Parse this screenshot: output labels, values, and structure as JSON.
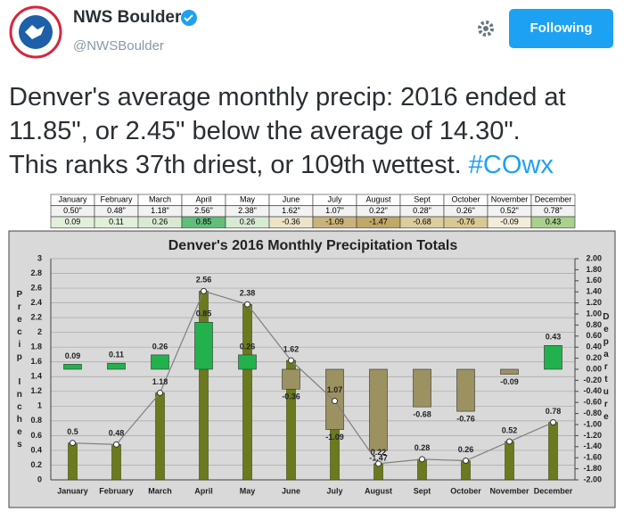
{
  "account": {
    "name": "NWS Boulder",
    "handle": "@NWSBoulder",
    "button": "Following"
  },
  "tweet": {
    "lines": [
      "Denver's average monthly precip: 2016 ended at",
      "11.85\", or 2.45\" below the average of 14.30\".",
      "This ranks 37th driest, or 109th wettest."
    ],
    "hashtag": "#COwx"
  },
  "table": {
    "header": [
      "January",
      "February",
      "March",
      "April",
      "May",
      "June",
      "July",
      "August",
      "Sept",
      "October",
      "November",
      "December"
    ],
    "rows": [
      [
        "0.50\"",
        "0.48\"",
        "1.18\"",
        "2.56\"",
        "2.38\"",
        "1.62\"",
        "1.07\"",
        "0.22\"",
        "0.28\"",
        "0.26\"",
        "0.52\"",
        "0.78\""
      ],
      [
        "0.09",
        "0.11",
        "0.26",
        "0.85",
        "0.26",
        "-0.36",
        "-1.09",
        "-1.47",
        "-0.68",
        "-0.76",
        "-0.09",
        "0.43"
      ]
    ],
    "row_colors": [
      [
        "#f2f2f2",
        "#f2f2f2",
        "#f2f2f2",
        "#f2f2f2",
        "#f2f2f2",
        "#f2f2f2",
        "#f2f2f2",
        "#f2f2f2",
        "#f2f2f2",
        "#f2f2f2",
        "#f2f2f2",
        "#f2f2f2"
      ],
      [
        "#e2efda",
        "#e2efda",
        "#d9ead3",
        "#63be7b",
        "#d9ead3",
        "#ede4c8",
        "#c9b27c",
        "#c0a76a",
        "#dccda0",
        "#d8c895",
        "#f2ecd9",
        "#a9d08e"
      ]
    ]
  },
  "chart_data": {
    "type": "bar",
    "title": "Denver's 2016 Monthly Precipitation Totals",
    "ylabel": "Precip Inches",
    "y2label": "Departure",
    "categories": [
      "January",
      "February",
      "March",
      "April",
      "May",
      "June",
      "July",
      "August",
      "Sept",
      "October",
      "November",
      "December"
    ],
    "series": [
      {
        "values": [
          0.5,
          0.48,
          1.18,
          2.56,
          2.38,
          1.62,
          1.07,
          0.22,
          0.28,
          0.26,
          0.52,
          0.78
        ],
        "color": "#6b7a1e",
        "line_color": "#7f7f7f",
        "axis": "y"
      },
      {
        "values": [
          0.09,
          0.11,
          0.26,
          0.85,
          0.26,
          -0.36,
          -1.09,
          -1.47,
          -0.68,
          -0.76,
          -0.09,
          0.43
        ],
        "color": "#22b14c",
        "negative_color": "#9c9160",
        "axis": "y2"
      }
    ],
    "ylim": [
      0,
      3
    ],
    "yticks": [
      0,
      0.2,
      0.4,
      0.6,
      0.8,
      1,
      1.2,
      1.4,
      1.6,
      1.8,
      2,
      2.2,
      2.4,
      2.6,
      2.8,
      3
    ],
    "y2lim": [
      -2,
      2
    ],
    "y2ticks": [
      {
        "value": -2,
        "label": "-2.00"
      },
      {
        "value": -1.8,
        "label": "-1.80"
      },
      {
        "value": -1.6,
        "label": "-1.60"
      },
      {
        "value": -1.4,
        "label": "-1.40"
      },
      {
        "value": -1.2,
        "label": "-1.20"
      },
      {
        "value": -1,
        "label": "-1.00"
      },
      {
        "value": -0.8,
        "label": "-0.80"
      },
      {
        "value": -0.6,
        "label": "-0.60"
      },
      {
        "value": -0.4,
        "label": "-0.40"
      },
      {
        "value": -0.2,
        "label": "-0.20"
      },
      {
        "value": 0,
        "label": "0.00"
      },
      {
        "value": 0.2,
        "label": "0.20"
      },
      {
        "value": 0.4,
        "label": "0.40"
      },
      {
        "value": 0.6,
        "label": "0.60"
      },
      {
        "value": 0.8,
        "label": "0.80"
      },
      {
        "value": 1,
        "label": "1.00"
      },
      {
        "value": 1.2,
        "label": "1.20"
      },
      {
        "value": 1.4,
        "label": "1.40"
      },
      {
        "value": 1.6,
        "label": "1.60"
      },
      {
        "value": 1.8,
        "label": "1.80"
      },
      {
        "value": 2,
        "label": "2.00"
      }
    ],
    "grid": true
  }
}
